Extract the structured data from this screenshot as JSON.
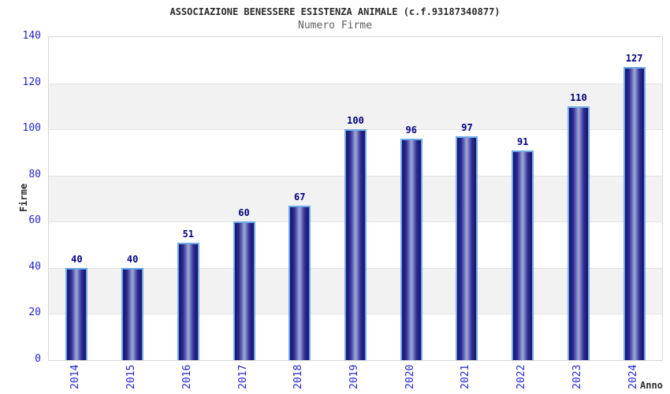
{
  "chart_data": {
    "type": "bar",
    "title": "ASSOCIAZIONE BENESSERE ESISTENZA ANIMALE (c.f.93187340877)",
    "subtitle": "Numero Firme",
    "xlabel": "Anno",
    "ylabel": "Firme",
    "categories": [
      "2014",
      "2015",
      "2016",
      "2017",
      "2018",
      "2019",
      "2020",
      "2021",
      "2022",
      "2023",
      "2024"
    ],
    "values": [
      40,
      40,
      51,
      60,
      67,
      100,
      96,
      97,
      91,
      110,
      127
    ],
    "ylim": [
      0,
      140
    ],
    "ytick_step": 20,
    "yticks": [
      0,
      20,
      40,
      60,
      80,
      100,
      120,
      140
    ],
    "grid": true,
    "legend": false,
    "band_fill": "alternating-horizontal",
    "colors": {
      "title-color": "#2b2b2b",
      "subtitle-color": "#5e5e5e",
      "tick-color": "#2323cc",
      "value-color": "#000082",
      "axis-title-color": "#2b2b2b",
      "plot-border": "#d6d6d6",
      "grid-color": "#e2e2e2",
      "band-gray": "#f2f2f2",
      "bar-border": "#70a9e6",
      "bar-dark": "#15156e",
      "bar-mid": "#2b2b94",
      "bar-light": "#a3a9d8"
    }
  }
}
